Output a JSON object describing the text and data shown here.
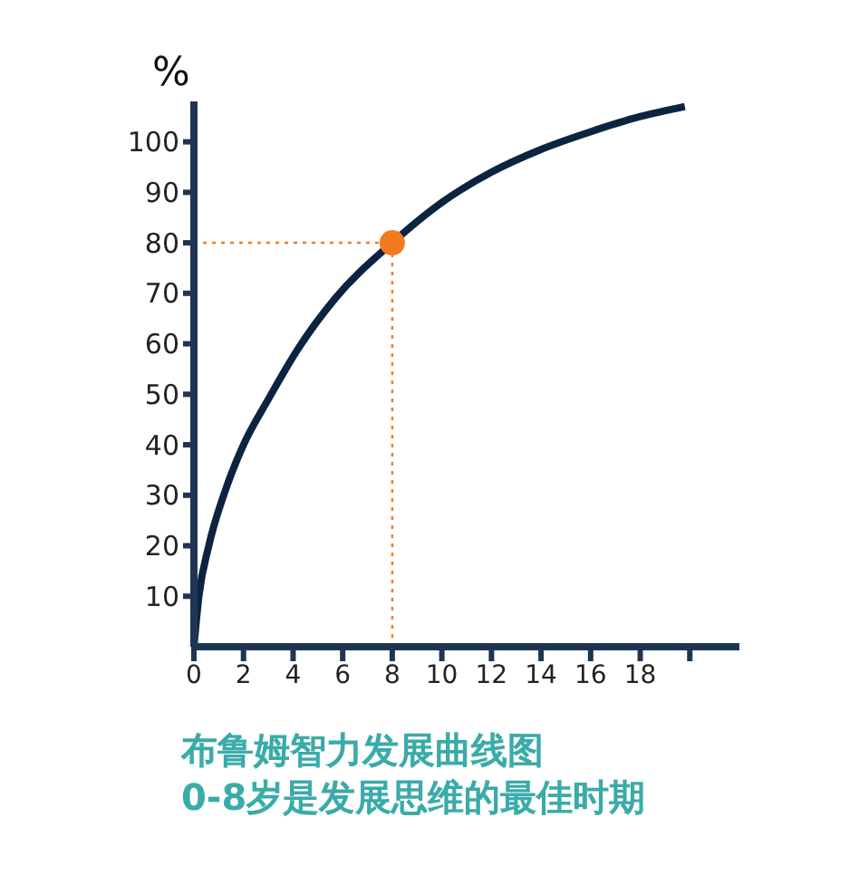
{
  "chart_data": {
    "type": "line",
    "title": "布鲁姆智力发展曲线图",
    "subtitle": "0-8岁是发展思维的最佳时期",
    "ylabel": "%",
    "x": [
      0,
      0.2,
      0.6,
      1.2,
      2,
      3,
      4.2,
      5.7,
      8,
      10,
      12,
      14,
      16,
      18,
      19.8
    ],
    "series": [
      {
        "color": "#0d2440",
        "values": [
          0,
          10,
          20,
          30,
          40,
          49,
          59,
          69,
          80,
          88,
          94,
          98.5,
          102,
          105,
          107
        ]
      },
      {
        "type": "scatter",
        "color": "#f47a20",
        "x": [
          8
        ],
        "values": [
          80
        ]
      }
    ],
    "xlim": [
      0,
      22
    ],
    "xticks": [
      0,
      2,
      4,
      6,
      8,
      10,
      12,
      14,
      16,
      18,
      {
        "value": 20,
        "label": null
      }
    ],
    "ylim": [
      0,
      108
    ],
    "yticks": [
      10,
      20,
      30,
      40,
      50,
      60,
      70,
      80,
      90,
      100
    ],
    "ref_lines": [
      {
        "axis": "x",
        "value": 8,
        "color": "#f47a20",
        "line_style": "dotted"
      },
      {
        "axis": "y",
        "value": 80,
        "color": "#f47a20",
        "line_style": "dotted"
      }
    ],
    "grid": false
  }
}
